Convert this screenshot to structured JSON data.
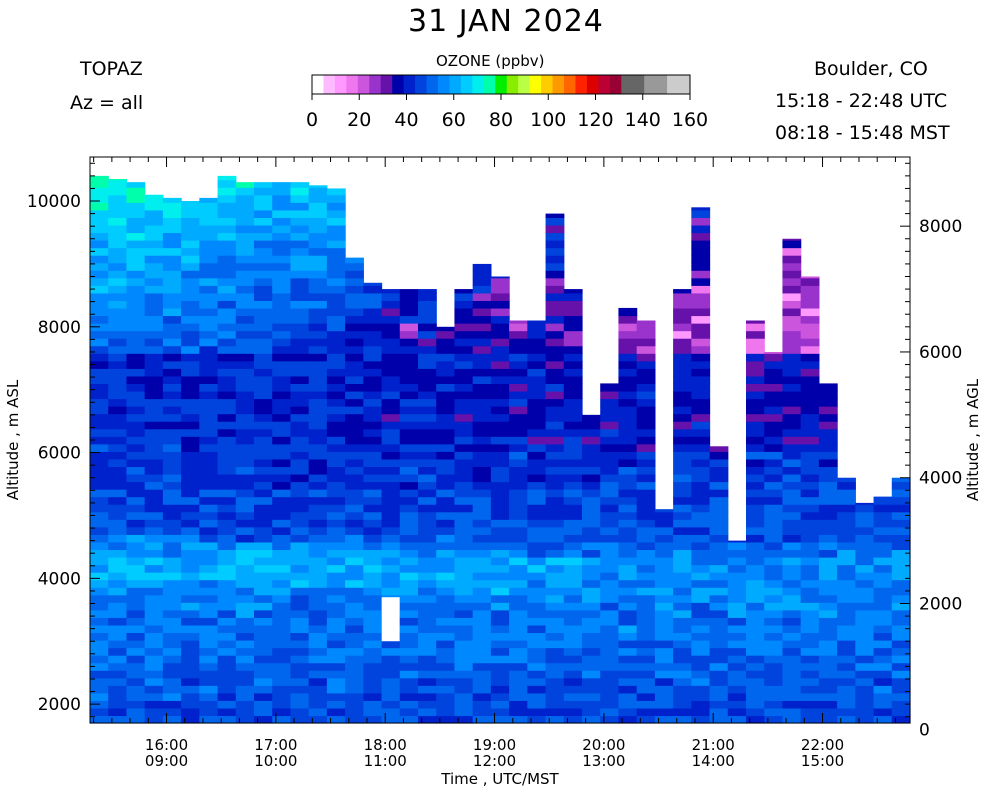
{
  "chart_data": {
    "type": "heatmap",
    "title": "31 JAN 2024",
    "instrument": "TOPAZ",
    "azimuth": "Az = all",
    "location": "Boulder, CO",
    "time_utc": "15:18 - 22:48 UTC",
    "time_local": "08:18 - 15:48 MST",
    "colorbar": {
      "title": "OZONE (ppbv)",
      "ticks": [
        "0",
        "20",
        "40",
        "60",
        "80",
        "100",
        "120",
        "140",
        "160"
      ],
      "range": [
        0,
        160
      ],
      "colors": [
        "#ffffff",
        "#ffbbff",
        "#ff99ff",
        "#ee77ee",
        "#cc55dd",
        "#9933cc",
        "#6611aa",
        "#0000aa",
        "#0022cc",
        "#0044dd",
        "#0066ee",
        "#0088ff",
        "#00aaff",
        "#00ccff",
        "#00eeee",
        "#00ffaa",
        "#00ee00",
        "#88ee00",
        "#bbff44",
        "#ffff00",
        "#ffcc00",
        "#ff9900",
        "#ff6600",
        "#ff2200",
        "#dd0000",
        "#bb0033",
        "#990033",
        "#666666",
        "#666666",
        "#999999",
        "#999999",
        "#cccccc",
        "#cccccc"
      ]
    },
    "xlabel": "Time , UTC/MST",
    "x_ticks_utc": [
      "16:00",
      "17:00",
      "18:00",
      "19:00",
      "20:00",
      "21:00",
      "22:00"
    ],
    "x_ticks_mst": [
      "09:00",
      "10:00",
      "11:00",
      "12:00",
      "13:00",
      "14:00",
      "15:00"
    ],
    "x_tick_hours": [
      16,
      17,
      18,
      19,
      20,
      21,
      22
    ],
    "xlim_hours_utc": [
      15.3,
      22.8
    ],
    "ylabel_left": "Altitude , m ASL",
    "ylabel_right": "Altitude , m AGL",
    "yticks_left": [
      2000,
      4000,
      6000,
      8000,
      10000
    ],
    "yticks_right": [
      0,
      2000,
      4000,
      6000,
      8000
    ],
    "ylim_asl": [
      1700,
      10700
    ],
    "agl_offset_m": 1600,
    "profile_top_asl_m": [
      10400,
      10350,
      10300,
      10100,
      10050,
      10000,
      10050,
      10400,
      10300,
      10300,
      10300,
      10300,
      10250,
      10200,
      9100,
      8700,
      8600,
      8600,
      8600,
      8000,
      8600,
      9000,
      8800,
      8100,
      8100,
      9800,
      8600,
      6600,
      7100,
      8300,
      8100,
      5100,
      8600,
      9900,
      6100,
      4600,
      8100,
      7600,
      9400,
      8800,
      7100,
      5600,
      5200,
      5300,
      5600
    ],
    "data_gap": {
      "hour_utc": 18.05,
      "from_asl_m": 3000,
      "to_asl_m": 3700
    },
    "ozone_profile_ppbv": [
      {
        "alt_asl_m": 1800,
        "ozone": 47
      },
      {
        "alt_asl_m": 2200,
        "ozone": 48
      },
      {
        "alt_asl_m": 2600,
        "ozone": 50
      },
      {
        "alt_asl_m": 3000,
        "ozone": 52
      },
      {
        "alt_asl_m": 3400,
        "ozone": 53
      },
      {
        "alt_asl_m": 3800,
        "ozone": 55
      },
      {
        "alt_asl_m": 4200,
        "ozone": 56
      },
      {
        "alt_asl_m": 4600,
        "ozone": 48
      },
      {
        "alt_asl_m": 5500,
        "ozone": 44
      },
      {
        "alt_asl_m": 6500,
        "ozone": 42
      },
      {
        "alt_asl_m": 7500,
        "ozone": 42
      },
      {
        "alt_asl_m": 8500,
        "ozone": 48
      },
      {
        "alt_asl_m": 9500,
        "ozone": 56
      },
      {
        "alt_asl_m": 10400,
        "ozone": 65
      }
    ]
  }
}
